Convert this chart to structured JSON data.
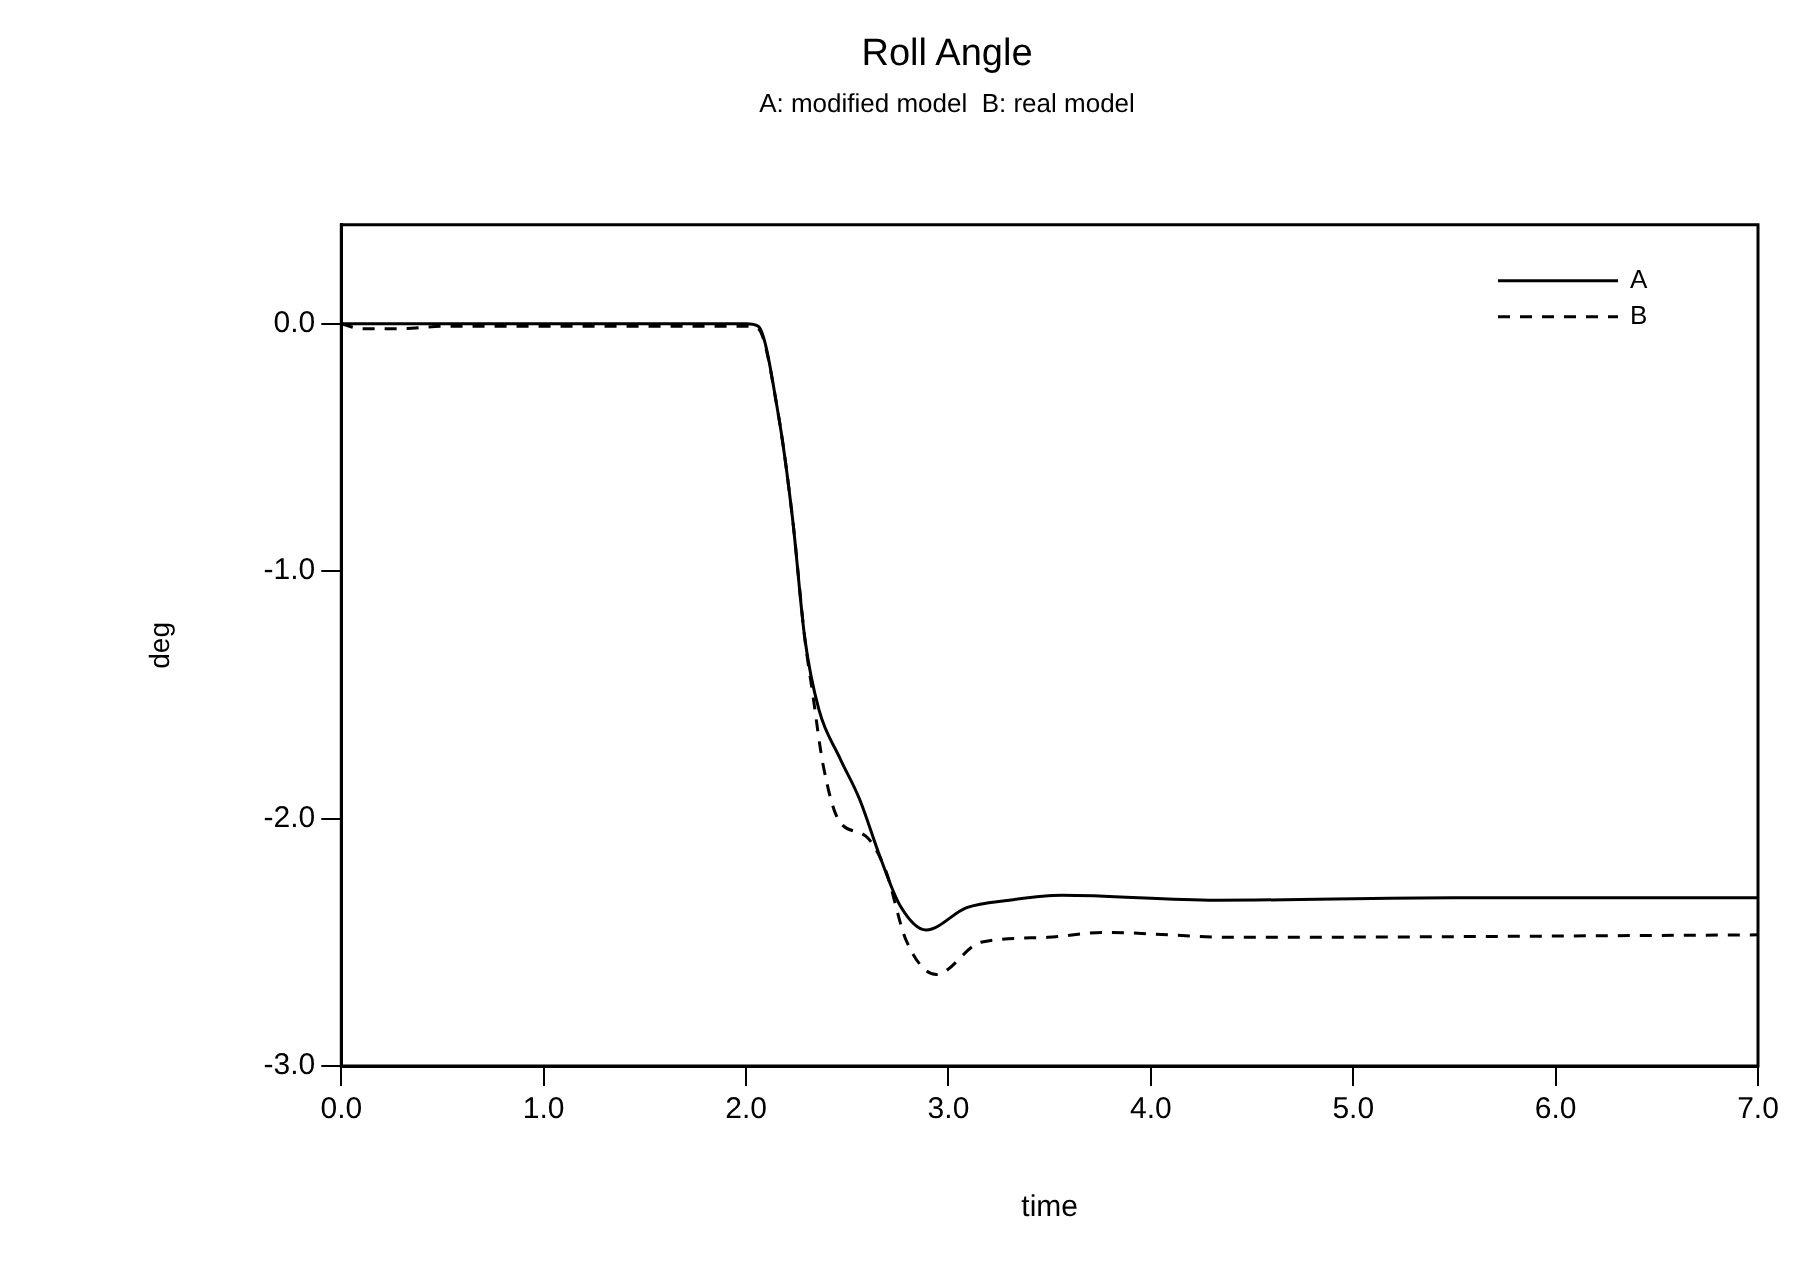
{
  "chart_data": {
    "type": "line",
    "title": "Roll Angle",
    "subtitle": "A: modified model  B: real model",
    "xlabel": "time",
    "ylabel": "deg",
    "xlim": [
      0,
      7
    ],
    "ylim": [
      -3,
      0.4
    ],
    "xticks": [
      {
        "value": 0,
        "label": "0.0"
      },
      {
        "value": 1,
        "label": "1.0"
      },
      {
        "value": 2,
        "label": "2.0"
      },
      {
        "value": 3,
        "label": "3.0"
      },
      {
        "value": 4,
        "label": "4.0"
      },
      {
        "value": 5,
        "label": "5.0"
      },
      {
        "value": 6,
        "label": "6.0"
      },
      {
        "value": 7,
        "label": "7.0"
      }
    ],
    "yticks": [
      {
        "value": -3,
        "label": "-3.0"
      },
      {
        "value": -2,
        "label": "-2.0"
      },
      {
        "value": -1,
        "label": "-1.0"
      },
      {
        "value": 0,
        "label": "0.0"
      }
    ],
    "grid": false,
    "legend": "top right",
    "marker": "none",
    "series": [
      {
        "name": "A",
        "color": "#000000",
        "line_style": "solid",
        "x": [
          0,
          1,
          2.0,
          2.06,
          2.16,
          2.23,
          2.29,
          2.36,
          2.46,
          2.56,
          2.66,
          2.76,
          2.89,
          3.09,
          3.3,
          3.56,
          4.32,
          5.5,
          7.0
        ],
        "values": [
          0,
          0,
          0,
          -0.01,
          -0.37,
          -0.79,
          -1.27,
          -1.56,
          -1.75,
          -1.92,
          -2.15,
          -2.35,
          -2.45,
          -2.36,
          -2.33,
          -2.31,
          -2.33,
          -2.32,
          -2.32
        ]
      },
      {
        "name": "B",
        "color": "#000000",
        "line_style": "dashed",
        "x": [
          0,
          0.1,
          0.3,
          0.5,
          1,
          2.0,
          2.06,
          2.16,
          2.23,
          2.29,
          2.33,
          2.38,
          2.46,
          2.59,
          2.69,
          2.79,
          2.94,
          3.16,
          3.49,
          3.76,
          4.42,
          7.0
        ],
        "values": [
          0,
          -0.02,
          -0.02,
          -0.01,
          -0.01,
          -0.01,
          -0.02,
          -0.37,
          -0.79,
          -1.27,
          -1.5,
          -1.78,
          -2.01,
          -2.07,
          -2.21,
          -2.49,
          -2.63,
          -2.5,
          -2.48,
          -2.46,
          -2.48,
          -2.47
        ]
      }
    ]
  }
}
